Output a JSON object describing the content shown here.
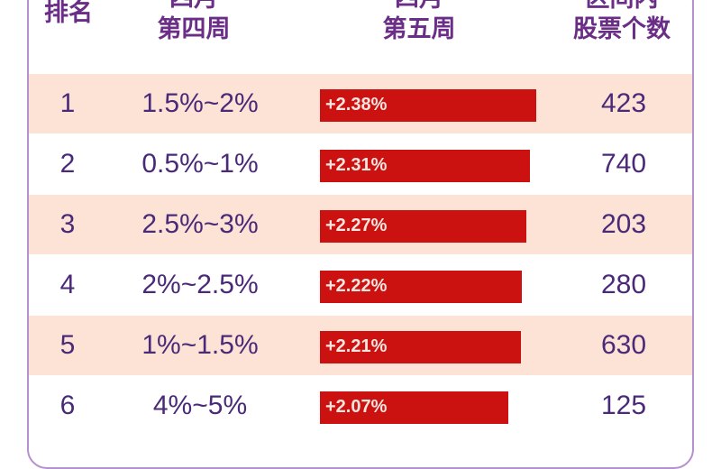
{
  "header": {
    "rank": "排名",
    "col_week4_line1": "四月",
    "col_week4_line2": "第四周",
    "col_week5_line1": "四月",
    "col_week5_line2": "第五周",
    "col_count_line1": "区间内",
    "col_count_line2": "股票个数"
  },
  "chart_data": {
    "type": "bar",
    "orientation": "horizontal",
    "columns": [
      "排名",
      "四月第四周",
      "四月第五周",
      "区间内股票个数"
    ],
    "rows": [
      {
        "rank": "1",
        "range": "1.5%~2%",
        "value": 2.38,
        "label": "+2.38%",
        "count": "423"
      },
      {
        "rank": "2",
        "range": "0.5%~1%",
        "value": 2.31,
        "label": "+2.31%",
        "count": "740"
      },
      {
        "rank": "3",
        "range": "2.5%~3%",
        "value": 2.27,
        "label": "+2.27%",
        "count": "203"
      },
      {
        "rank": "4",
        "range": "2%~2.5%",
        "value": 2.22,
        "label": "+2.22%",
        "count": "280"
      },
      {
        "rank": "5",
        "range": "1%~1.5%",
        "value": 2.21,
        "label": "+2.21%",
        "count": "630"
      },
      {
        "rank": "6",
        "range": "4%~5%",
        "value": 2.07,
        "label": "+2.07%",
        "count": "125"
      }
    ],
    "bar_color": "#cc1111",
    "row_colors": [
      "#fde3d6",
      "#ffffff"
    ]
  }
}
